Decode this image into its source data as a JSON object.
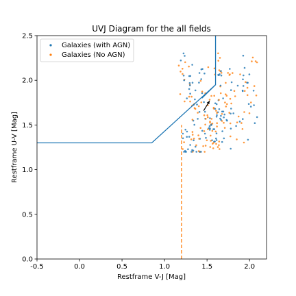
{
  "chart_data": {
    "type": "scatter",
    "title": "UVJ Diagram for the all fields",
    "xlabel": "Restframe V-J [Mag]",
    "ylabel": "Restframe U-V [Mag]",
    "xlim": [
      -0.5,
      2.2
    ],
    "ylim": [
      0.0,
      2.5
    ],
    "xticks": [
      "-0.5",
      "0.0",
      "0.5",
      "1.0",
      "1.5",
      "2.0"
    ],
    "yticks": [
      "0.0",
      "0.5",
      "1.0",
      "1.5",
      "2.0",
      "2.5"
    ],
    "grid": false,
    "legend_position": "upper-left",
    "colors": {
      "agn": "#1f77b4",
      "noagn": "#ff7f0e",
      "box": "#1f77b4",
      "cut": "#ff7f0e"
    },
    "series": [
      {
        "name": "Galaxies (with AGN)",
        "marker": "dot",
        "color": "#1f77b4"
      },
      {
        "name": "Galaxies (No AGN)",
        "marker": "dot",
        "color": "#ff7f0e"
      }
    ],
    "selection_box": [
      [
        -0.5,
        1.3
      ],
      [
        0.85,
        1.3
      ],
      [
        1.6,
        1.95
      ],
      [
        1.6,
        2.5
      ]
    ],
    "selection_diag_inner": [
      [
        1.44,
        1.8
      ],
      [
        1.6,
        1.95
      ]
    ],
    "vertical_cut": {
      "x": 1.2,
      "y_range": [
        0.0,
        1.5
      ]
    },
    "arrow": {
      "from": [
        1.46,
        1.66
      ],
      "to": [
        1.53,
        1.77
      ]
    },
    "clusters": [
      {
        "xc": 1.25,
        "yc": 2.05,
        "dx": 0.1,
        "dy": 0.3,
        "n": 20
      },
      {
        "xc": 1.42,
        "yc": 1.7,
        "dx": 0.16,
        "dy": 0.45,
        "n": 40
      },
      {
        "xc": 1.5,
        "yc": 1.45,
        "dx": 0.18,
        "dy": 0.35,
        "n": 50
      },
      {
        "xc": 1.33,
        "yc": 1.3,
        "dx": 0.12,
        "dy": 0.15,
        "n": 25
      },
      {
        "xc": 1.62,
        "yc": 1.55,
        "dx": 0.12,
        "dy": 0.3,
        "n": 35
      },
      {
        "xc": 1.72,
        "yc": 1.8,
        "dx": 0.08,
        "dy": 0.4,
        "n": 25
      },
      {
        "xc": 1.88,
        "yc": 1.6,
        "dx": 0.12,
        "dy": 0.5,
        "n": 30
      },
      {
        "xc": 2.02,
        "yc": 1.9,
        "dx": 0.1,
        "dy": 0.4,
        "n": 20
      },
      {
        "xc": 1.63,
        "yc": 2.2,
        "dx": 0.05,
        "dy": 0.15,
        "n": 12
      }
    ]
  }
}
